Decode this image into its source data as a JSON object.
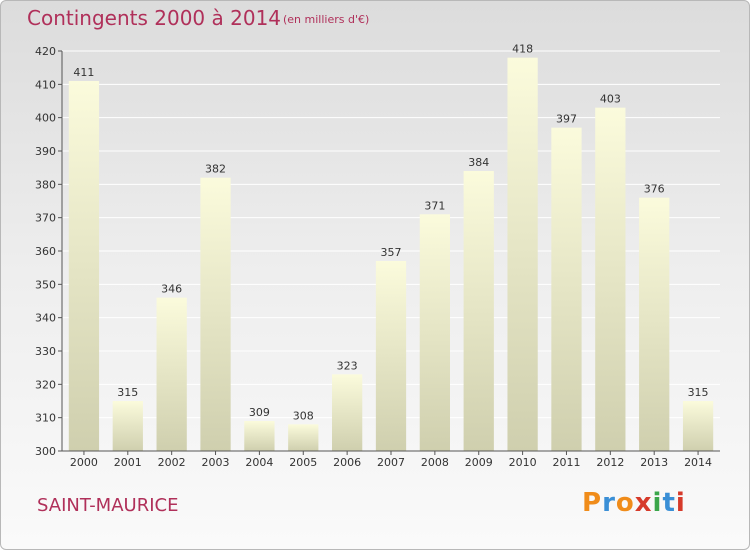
{
  "header": {
    "title": "Contingents 2000 à 2014",
    "unit": "(en milliers d'€)"
  },
  "footer": {
    "place": "SAINT-MAURICE"
  },
  "logo": {
    "letters": [
      "P",
      "r",
      "o",
      "x",
      "i",
      "t",
      "i"
    ],
    "colors": [
      "#f08c1a",
      "#3a8fd6",
      "#f08c1a",
      "#d63a2a",
      "#3aa64a",
      "#3a8fd6",
      "#d63a2a"
    ]
  },
  "chart_data": {
    "type": "bar",
    "categories": [
      "2000",
      "2001",
      "2002",
      "2003",
      "2004",
      "2005",
      "2006",
      "2007",
      "2008",
      "2009",
      "2010",
      "2011",
      "2012",
      "2013",
      "2014"
    ],
    "values": [
      411,
      315,
      346,
      382,
      309,
      308,
      323,
      357,
      371,
      384,
      418,
      397,
      403,
      376,
      315
    ],
    "title": "Contingents 2000 à 2014",
    "ylim": [
      300,
      420
    ],
    "yticks": [
      300,
      310,
      320,
      330,
      340,
      350,
      360,
      370,
      380,
      390,
      400,
      410,
      420
    ],
    "grid": true,
    "colors": {
      "bar_top": "#fbfbdc",
      "bar_bottom": "#cfcfae",
      "grid": "#ffffff",
      "axis": "#555555"
    }
  }
}
